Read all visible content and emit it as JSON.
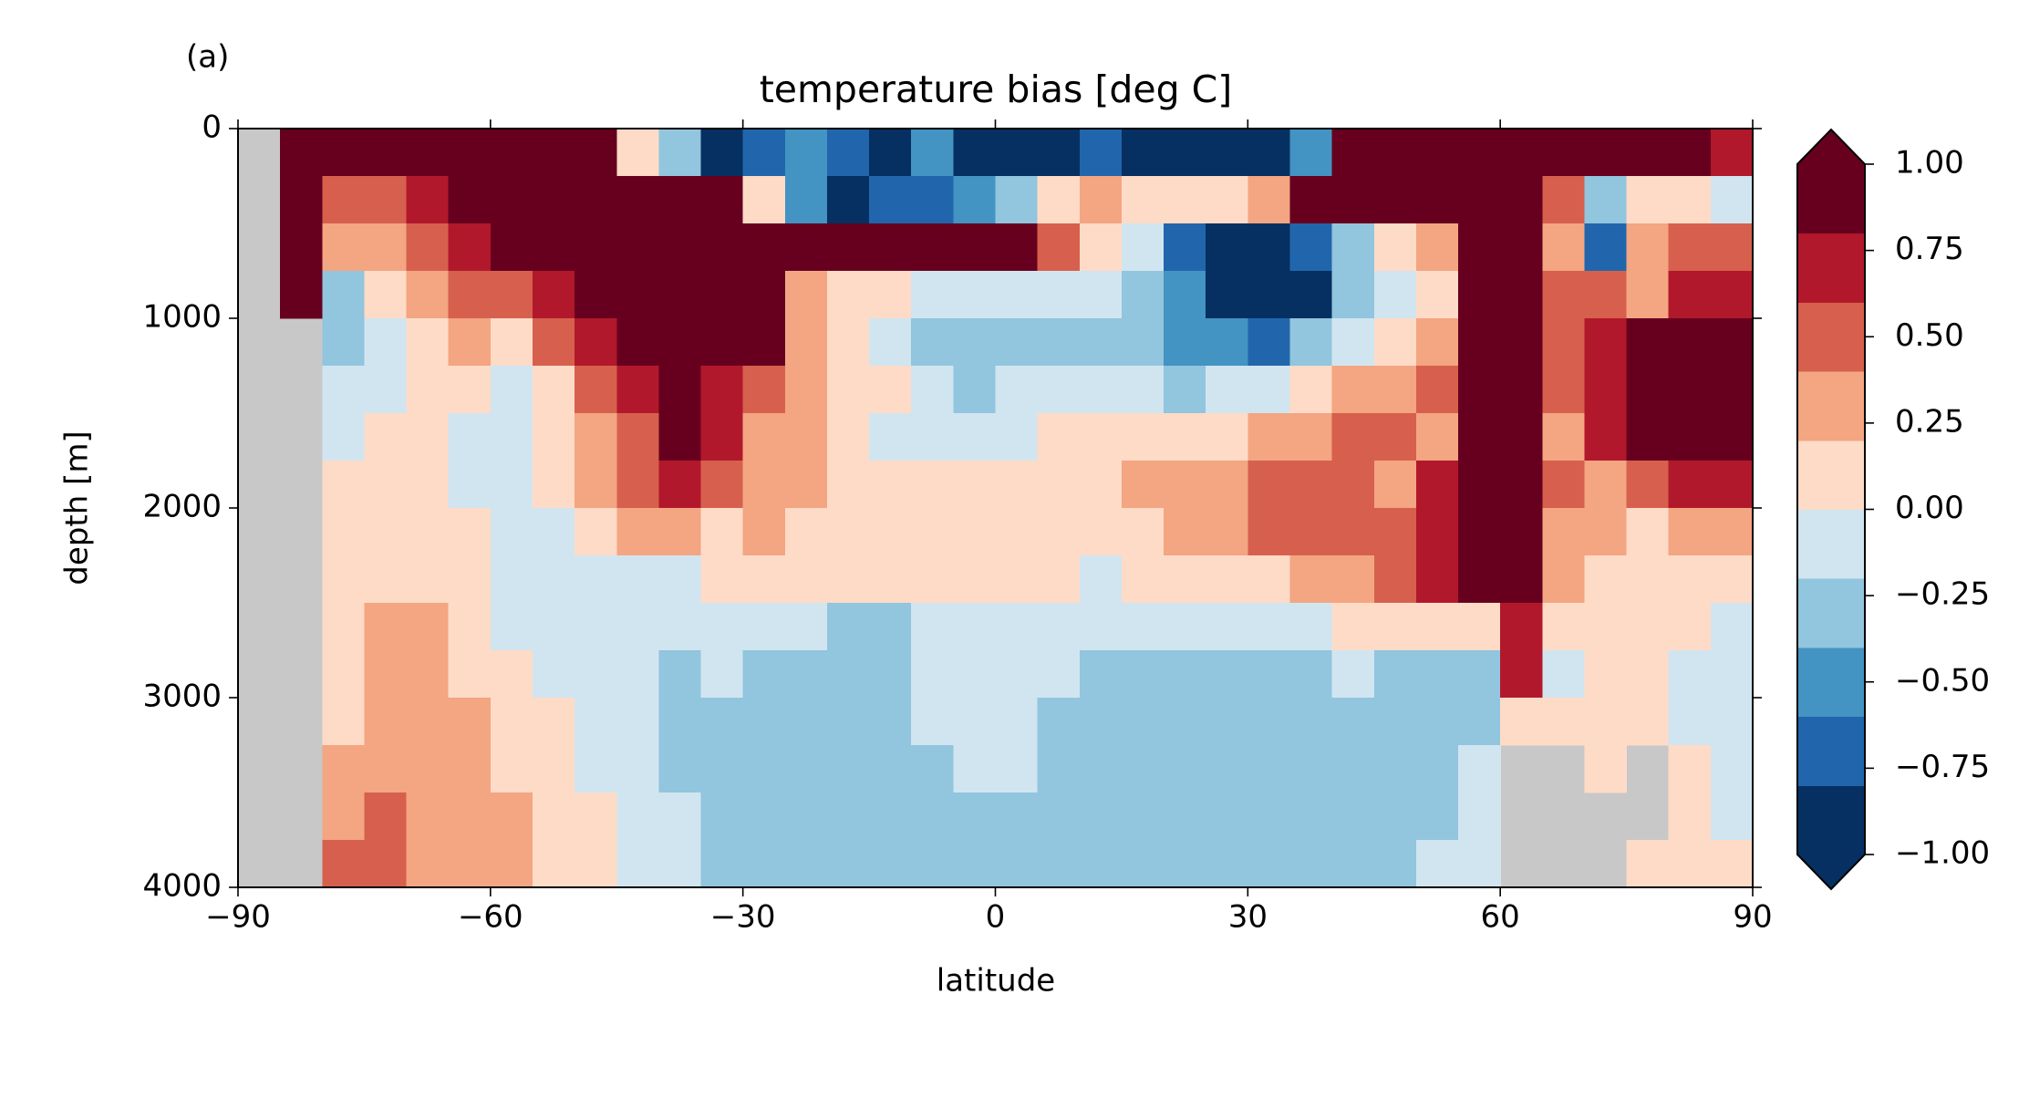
{
  "chart_data": {
    "type": "heatmap",
    "panel_label": "(a)",
    "title": "temperature bias [deg C]",
    "xlabel": "latitude",
    "ylabel": "depth [m]",
    "xlim": [
      -90,
      90
    ],
    "xticks": [
      {
        "value": -90,
        "label": "−90"
      },
      {
        "value": -60,
        "label": "−60"
      },
      {
        "value": -30,
        "label": "−30"
      },
      0,
      30,
      60,
      90
    ],
    "ylim": [
      4000,
      0
    ],
    "yticks": [
      0,
      1000,
      2000,
      3000,
      4000
    ],
    "levels": [
      -1,
      -0.8,
      -0.6,
      -0.4,
      -0.2,
      0,
      0.2,
      0.4,
      0.6,
      0.8,
      1
    ],
    "colors": [
      "#053061",
      "#2166ac",
      "#4393c3",
      "#92c5de",
      "#d1e5f0",
      "#fddbc7",
      "#f4a582",
      "#d6604d",
      "#b2182b",
      "#67001f"
    ],
    "nan_color": "#c8c8c8",
    "cticks": [
      {
        "value": 1,
        "label": "1.00"
      },
      {
        "value": 0.75,
        "label": "0.75"
      },
      {
        "value": 0.5,
        "label": "0.50"
      },
      {
        "value": 0.25,
        "label": "0.25"
      },
      {
        "value": 0,
        "label": "0.00"
      },
      {
        "value": -0.25,
        "label": "−0.25"
      },
      {
        "value": -0.5,
        "label": "−0.50"
      },
      {
        "value": -0.75,
        "label": "−0.75"
      },
      {
        "value": -1,
        "label": "−1.00"
      }
    ],
    "x": [
      -87.5,
      -82.5,
      -77.5,
      -72.5,
      -67.5,
      -62.5,
      -57.5,
      -52.5,
      -47.5,
      -42.5,
      -37.5,
      -32.5,
      -27.5,
      -22.5,
      -17.5,
      -12.5,
      -7.5,
      -2.5,
      2.5,
      7.5,
      12.5,
      17.5,
      22.5,
      27.5,
      32.5,
      37.5,
      42.5,
      47.5,
      52.5,
      57.5,
      62.5,
      67.5,
      72.5,
      77.5,
      82.5,
      87.5
    ],
    "y": [
      125,
      375,
      625,
      875,
      1125,
      1375,
      1625,
      1875,
      2125,
      2375,
      2625,
      2875,
      3125,
      3375,
      3625,
      3875
    ],
    "z": [
      [
        null,
        1.2,
        1.2,
        1.2,
        1.2,
        1.2,
        1.2,
        1.2,
        1.2,
        0.1,
        -0.3,
        -0.9,
        -0.7,
        -0.6,
        -0.7,
        -0.9,
        -0.6,
        -1.1,
        -1.1,
        -0.9,
        -0.8,
        -0.9,
        -1.1,
        -1.1,
        -0.9,
        -0.5,
        1.2,
        1.2,
        1.2,
        1.2,
        1.2,
        1.2,
        1.2,
        1.2,
        1.2,
        0.7
      ],
      [
        null,
        1.2,
        0.5,
        0.5,
        0.7,
        1.2,
        1.2,
        1.2,
        1.2,
        1.2,
        1.2,
        1.2,
        0.1,
        -0.5,
        -0.9,
        -0.8,
        -0.7,
        -0.5,
        -0.3,
        0.1,
        0.3,
        0.1,
        0.1,
        0.1,
        0.3,
        1.2,
        1.2,
        1.2,
        1.2,
        1.2,
        1.2,
        0.5,
        -0.4,
        0.1,
        0.1,
        -0.2
      ],
      [
        null,
        1.2,
        0.3,
        0.3,
        0.5,
        0.7,
        1.2,
        1.2,
        1.2,
        1.2,
        1.2,
        1.2,
        1.2,
        1.2,
        1.2,
        1.2,
        1.2,
        1.2,
        1.2,
        0.5,
        0.1,
        -0.1,
        -0.7,
        -0.9,
        -1.1,
        -0.7,
        -0.3,
        0.1,
        0.3,
        1.2,
        1.2,
        0.3,
        -0.7,
        0.3,
        0.5,
        0.5
      ],
      [
        null,
        1.2,
        -0.3,
        0.1,
        0.3,
        0.5,
        0.5,
        0.7,
        1.2,
        1.2,
        1.2,
        1.2,
        1.2,
        0.3,
        0.1,
        0.1,
        -0.1,
        -0.1,
        -0.1,
        -0.1,
        -0.1,
        -0.3,
        -0.5,
        -1.1,
        -1.1,
        -0.9,
        -0.3,
        -0.1,
        0.1,
        1.2,
        1.2,
        0.5,
        0.5,
        0.3,
        0.7,
        0.7
      ],
      [
        null,
        null,
        -0.3,
        -0.1,
        0.1,
        0.3,
        0.1,
        0.5,
        0.7,
        1.2,
        1.2,
        1.2,
        0.9,
        0.3,
        0.1,
        -0.1,
        -0.3,
        -0.3,
        -0.3,
        -0.3,
        -0.3,
        -0.3,
        -0.5,
        -0.5,
        -0.7,
        -0.3,
        -0.1,
        0.1,
        0.3,
        1.2,
        1.2,
        0.5,
        0.7,
        1.2,
        1.2,
        1.2
      ],
      [
        null,
        null,
        -0.1,
        -0.1,
        0.1,
        0.1,
        -0.1,
        0.1,
        0.5,
        0.7,
        1.2,
        0.7,
        0.5,
        0.3,
        0.1,
        0.1,
        -0.1,
        -0.3,
        -0.1,
        -0.1,
        -0.1,
        -0.1,
        -0.3,
        -0.1,
        -0.1,
        0.1,
        0.3,
        0.3,
        0.5,
        1.2,
        1.2,
        0.5,
        0.7,
        1.2,
        1.2,
        1.2
      ],
      [
        null,
        null,
        -0.1,
        0.1,
        0.1,
        -0.1,
        -0.1,
        0.1,
        0.3,
        0.5,
        1.2,
        0.7,
        0.3,
        0.3,
        0.1,
        -0.1,
        -0.1,
        -0.1,
        -0.1,
        0.1,
        0.1,
        0.1,
        0.1,
        0.1,
        0.3,
        0.3,
        0.5,
        0.5,
        0.3,
        1.2,
        1.2,
        0.3,
        0.7,
        1.2,
        1.2,
        1.2
      ],
      [
        null,
        null,
        0.1,
        0.1,
        0.1,
        -0.1,
        -0.1,
        0.1,
        0.3,
        0.5,
        0.7,
        0.5,
        0.3,
        0.3,
        0.1,
        0.1,
        0.1,
        0.1,
        0.1,
        0.1,
        0.1,
        0.3,
        0.3,
        0.3,
        0.5,
        0.5,
        0.5,
        0.3,
        0.7,
        1.2,
        1.2,
        0.5,
        0.3,
        0.5,
        0.7,
        0.7
      ],
      [
        null,
        null,
        0.1,
        0.1,
        0.1,
        0.1,
        -0.1,
        -0.1,
        0.1,
        0.3,
        0.3,
        0.1,
        0.3,
        0.1,
        0.1,
        0.1,
        0.1,
        0.1,
        0.1,
        0.1,
        0.1,
        0.1,
        0.3,
        0.3,
        0.5,
        0.5,
        0.5,
        0.5,
        0.7,
        1.2,
        1.2,
        0.3,
        0.3,
        0.1,
        0.3,
        0.3
      ],
      [
        null,
        null,
        0.1,
        0.1,
        0.1,
        0.1,
        -0.1,
        -0.1,
        -0.1,
        -0.1,
        -0.1,
        0.1,
        0.1,
        0.1,
        0.1,
        0.1,
        0.1,
        0.1,
        0.1,
        0.1,
        -0.1,
        0.1,
        0.1,
        0.1,
        0.1,
        0.3,
        0.3,
        0.5,
        0.7,
        0.9,
        1.2,
        0.3,
        0.1,
        0.1,
        0.1,
        0.1
      ],
      [
        null,
        null,
        0.1,
        0.3,
        0.3,
        0.1,
        -0.1,
        -0.1,
        -0.1,
        -0.1,
        -0.1,
        -0.1,
        -0.1,
        -0.1,
        -0.3,
        -0.3,
        -0.1,
        -0.1,
        -0.1,
        -0.1,
        -0.1,
        -0.1,
        -0.1,
        -0.1,
        -0.1,
        -0.1,
        0.1,
        0.1,
        0.1,
        0.1,
        0.7,
        0.1,
        0.1,
        0.1,
        0.1,
        -0.1
      ],
      [
        null,
        null,
        0.1,
        0.3,
        0.3,
        0.1,
        0.1,
        -0.1,
        -0.1,
        -0.1,
        -0.3,
        -0.1,
        -0.3,
        -0.3,
        -0.3,
        -0.3,
        -0.1,
        -0.1,
        -0.1,
        -0.1,
        -0.3,
        -0.3,
        -0.3,
        -0.3,
        -0.3,
        -0.3,
        -0.1,
        -0.3,
        -0.3,
        -0.3,
        0.7,
        -0.1,
        0.1,
        0.1,
        -0.1,
        -0.1
      ],
      [
        null,
        null,
        0.1,
        0.3,
        0.3,
        0.3,
        0.1,
        0.1,
        -0.1,
        -0.1,
        -0.3,
        -0.3,
        -0.3,
        -0.3,
        -0.3,
        -0.3,
        -0.1,
        -0.1,
        -0.1,
        -0.3,
        -0.3,
        -0.3,
        -0.3,
        -0.3,
        -0.3,
        -0.3,
        -0.3,
        -0.3,
        -0.3,
        -0.3,
        0.1,
        0.1,
        0.1,
        0.1,
        -0.1,
        -0.1
      ],
      [
        null,
        null,
        0.3,
        0.3,
        0.3,
        0.3,
        0.1,
        0.1,
        -0.1,
        -0.1,
        -0.3,
        -0.3,
        -0.3,
        -0.3,
        -0.3,
        -0.3,
        -0.3,
        -0.1,
        -0.1,
        -0.3,
        -0.3,
        -0.3,
        -0.3,
        -0.3,
        -0.3,
        -0.3,
        -0.3,
        -0.3,
        -0.3,
        -0.1,
        null,
        null,
        0.1,
        null,
        0.1,
        -0.1
      ],
      [
        null,
        null,
        0.3,
        0.5,
        0.3,
        0.3,
        0.3,
        0.1,
        0.1,
        -0.1,
        -0.1,
        -0.3,
        -0.3,
        -0.3,
        -0.3,
        -0.3,
        -0.3,
        -0.3,
        -0.3,
        -0.3,
        -0.3,
        -0.3,
        -0.3,
        -0.3,
        -0.3,
        -0.3,
        -0.3,
        -0.3,
        -0.3,
        -0.1,
        null,
        null,
        null,
        null,
        0.1,
        -0.1
      ],
      [
        null,
        null,
        0.5,
        0.5,
        0.3,
        0.3,
        0.3,
        0.1,
        0.1,
        -0.1,
        -0.1,
        -0.3,
        -0.3,
        -0.3,
        -0.3,
        -0.3,
        -0.3,
        -0.3,
        -0.3,
        -0.3,
        -0.3,
        -0.3,
        -0.3,
        -0.3,
        -0.3,
        -0.3,
        -0.3,
        -0.3,
        -0.1,
        -0.1,
        null,
        null,
        null,
        0.1,
        0.1,
        0.1
      ]
    ]
  }
}
